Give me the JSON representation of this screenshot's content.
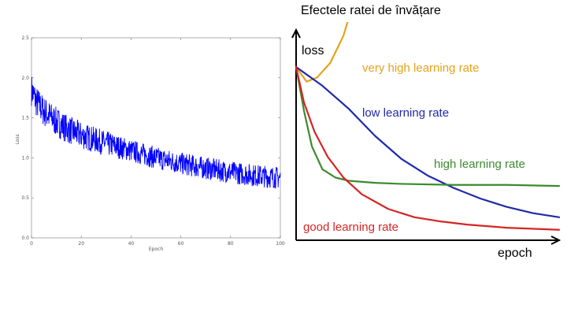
{
  "title": "Efectele ratei de învățare",
  "chart_data": [
    {
      "type": "line",
      "xlabel": "Epoch",
      "ylabel": "Loss",
      "xlim": [
        0,
        100
      ],
      "ylim": [
        0.0,
        2.5
      ],
      "x_ticks": [
        "0",
        "20",
        "40",
        "60",
        "80",
        "100"
      ],
      "y_ticks": [
        "0.0",
        "0.5",
        "1.0",
        "1.5",
        "2.0",
        "2.5"
      ],
      "grid": false,
      "series": [
        {
          "color": "#0000ff",
          "x": [
            0,
            2,
            5,
            10,
            15,
            20,
            30,
            40,
            50,
            60,
            70,
            80,
            90,
            100
          ],
          "values": [
            1.85,
            1.7,
            1.58,
            1.45,
            1.35,
            1.28,
            1.18,
            1.09,
            1.0,
            0.93,
            0.87,
            0.82,
            0.78,
            0.75
          ]
        }
      ]
    },
    {
      "type": "line",
      "xlabel": "epoch",
      "ylabel": "loss",
      "grid": false,
      "series": [
        {
          "name": "very high learning rate",
          "color": "#e6a21a",
          "x": [
            0,
            4,
            8,
            13,
            18,
            20,
            22
          ],
          "values": [
            0.83,
            0.76,
            0.78,
            0.85,
            0.98,
            1.08,
            1.3
          ]
        },
        {
          "name": "low learning rate",
          "color": "#1f2aa8",
          "x": [
            0,
            10,
            20,
            30,
            40,
            50,
            60,
            70,
            80,
            90,
            100
          ],
          "values": [
            0.83,
            0.74,
            0.63,
            0.5,
            0.39,
            0.31,
            0.25,
            0.2,
            0.16,
            0.13,
            0.11
          ]
        },
        {
          "name": "high learning rate",
          "color": "#3b8a2e",
          "x": [
            0,
            3,
            6,
            10,
            15,
            20,
            30,
            40,
            60,
            80,
            100
          ],
          "values": [
            0.83,
            0.62,
            0.45,
            0.34,
            0.3,
            0.285,
            0.275,
            0.27,
            0.265,
            0.265,
            0.26
          ]
        },
        {
          "name": "good learning rate",
          "color": "#d62424",
          "x": [
            0,
            3,
            7,
            12,
            18,
            25,
            35,
            45,
            55,
            65,
            80,
            100
          ],
          "values": [
            0.83,
            0.66,
            0.52,
            0.4,
            0.3,
            0.22,
            0.15,
            0.11,
            0.09,
            0.075,
            0.06,
            0.05
          ]
        }
      ]
    }
  ]
}
